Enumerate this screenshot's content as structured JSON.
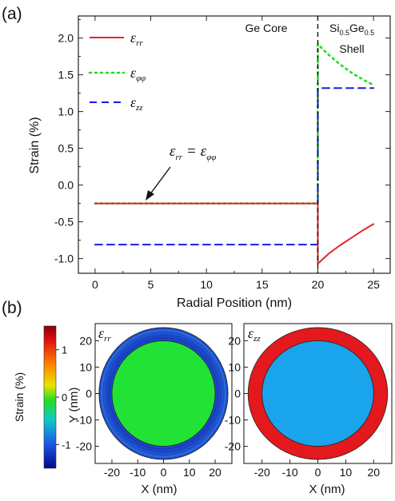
{
  "panel_a": {
    "label": "(a)",
    "core_label": "Ge Core",
    "shell_label": {
      "si": "Si",
      "si_sub": "0.5",
      "ge": "Ge",
      "ge_sub": "0.5",
      "line2": "Shell"
    },
    "legend": [
      {
        "sym": "ε",
        "sub": "rr",
        "color": "#e8242a",
        "dash": "solid"
      },
      {
        "sym": "ε",
        "sub": "φφ",
        "color": "#22dd22",
        "dash": "dotted"
      },
      {
        "sym": "ε",
        "sub": "zz",
        "color": "#1a1ae6",
        "dash": "dashed"
      }
    ],
    "annotation": {
      "lhs": "ε",
      "lhs_sub": "rr",
      "eq": "=",
      "rhs": "ε",
      "rhs_sub": "φφ"
    }
  },
  "panel_b": {
    "label": "(b)",
    "colorbar": {
      "label": "Strain (%)",
      "ticks": [
        "1",
        "0",
        "-1"
      ],
      "tick_values": [
        1,
        0,
        -1
      ],
      "range": [
        -1.5,
        1.5
      ]
    },
    "maps": [
      {
        "sym": "ε",
        "sub": "rr",
        "core_value": -0.25,
        "shell_value": -0.8,
        "core_color": "#22e335",
        "shell_color": "#1e4ccf",
        "edge_color": "#3a7ad8"
      },
      {
        "sym": "ε",
        "sub": "zz",
        "core_value": -0.8,
        "shell_value": 1.3,
        "core_color": "#1aa4ec",
        "shell_color": "#e3191d",
        "edge_color": "#e3191d"
      }
    ],
    "xlabel": "X (nm)",
    "ylabel": "Y (nm)",
    "ticks": [
      "-20",
      "-10",
      "0",
      "10",
      "20"
    ],
    "tick_values": [
      -20,
      -10,
      0,
      10,
      20
    ]
  },
  "chart_data": [
    {
      "type": "line",
      "panel": "(a)",
      "xlabel": "Radial Position (nm)",
      "ylabel": "Strain (%)",
      "xlim": [
        -1.5,
        26.5
      ],
      "ylim": [
        -1.2,
        2.3
      ],
      "xticks": [
        0,
        5,
        10,
        15,
        20,
        25
      ],
      "xtick_labels": [
        "0",
        "5",
        "10",
        "15",
        "20",
        "25"
      ],
      "yticks": [
        -1.0,
        -0.5,
        0.0,
        0.5,
        1.0,
        1.5,
        2.0
      ],
      "ytick_labels": [
        "-1.0",
        "-0.5",
        "0.0",
        "0.5",
        "1.0",
        "1.5",
        "2.0"
      ],
      "grid": false,
      "legend_position": "top-left",
      "vline_x": 20,
      "series": [
        {
          "name": "ε_rr",
          "color": "#e8242a",
          "dash": "solid",
          "x": [
            0,
            20,
            20,
            20.5,
            21,
            22,
            23,
            24,
            25
          ],
          "y": [
            -0.25,
            -0.25,
            -1.07,
            -1.0,
            -0.93,
            -0.82,
            -0.72,
            -0.62,
            -0.53
          ]
        },
        {
          "name": "ε_φφ",
          "color": "#22dd22",
          "dash": "dotted",
          "x": [
            0,
            20,
            20,
            20.5,
            21,
            22,
            23,
            24,
            25
          ],
          "y": [
            -0.25,
            -0.25,
            1.92,
            1.84,
            1.77,
            1.64,
            1.53,
            1.44,
            1.36
          ]
        },
        {
          "name": "ε_zz",
          "color": "#1a1ae6",
          "dash": "dashed",
          "x": [
            0,
            20,
            20,
            25
          ],
          "y": [
            -0.81,
            -0.81,
            1.32,
            1.32
          ]
        }
      ]
    }
  ]
}
